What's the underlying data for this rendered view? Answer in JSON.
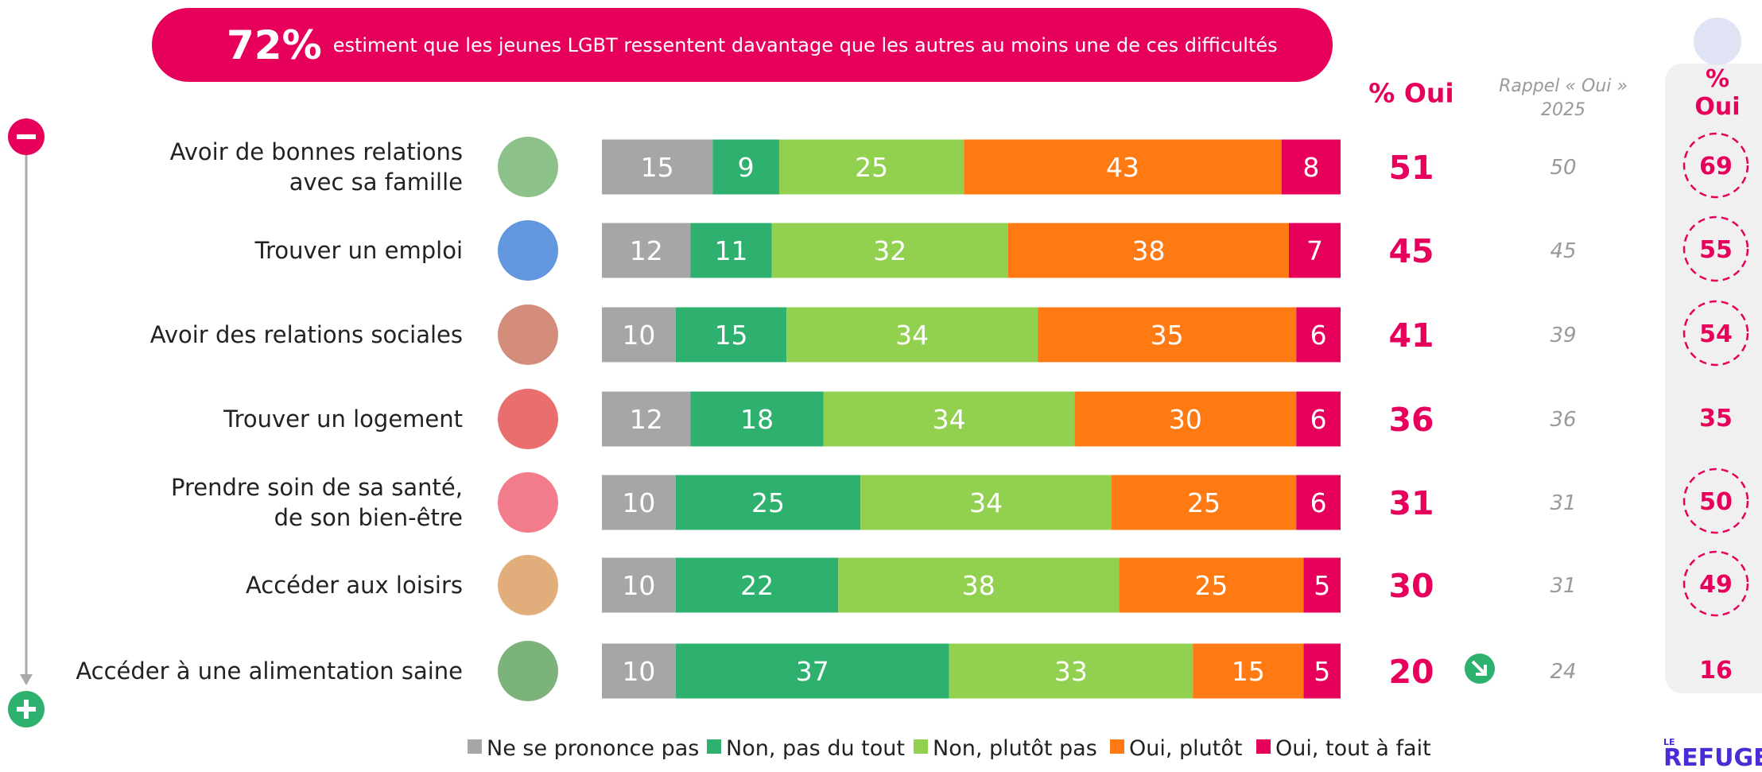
{
  "chart_data": {
    "type": "stacked-bar",
    "headline": {
      "figure": "72%",
      "text": "estiment que les jeunes LGBT ressentent davantage que les autres au moins une de ces difficultés"
    },
    "categories": [
      "Avoir de bonnes relations\navec sa famille",
      "Trouver un emploi",
      "Avoir des relations sociales",
      "Trouver un logement",
      "Prendre soin de sa santé,\nde son bien-être",
      "Accéder aux loisirs",
      "Accéder à une alimentation saine"
    ],
    "xlim": [
      0,
      100
    ],
    "series": [
      {
        "name": "Ne se prononce pas",
        "color": "#a6a6a6",
        "values": [
          15,
          12,
          10,
          12,
          10,
          10,
          10
        ]
      },
      {
        "name": "Non, pas du tout",
        "color": "#2eb06f",
        "values": [
          9,
          11,
          15,
          18,
          25,
          22,
          37
        ]
      },
      {
        "name": "Non, plutôt pas",
        "color": "#92d050",
        "values": [
          25,
          32,
          34,
          34,
          34,
          38,
          33
        ]
      },
      {
        "name": "Oui, plutôt",
        "color": "#ff7a12",
        "values": [
          43,
          38,
          35,
          30,
          25,
          25,
          15
        ]
      },
      {
        "name": "Oui, tout à fait",
        "color": "#e6005c",
        "values": [
          8,
          7,
          6,
          6,
          6,
          5,
          5
        ]
      }
    ],
    "oui_total": {
      "label": "% Oui",
      "values": [
        51,
        45,
        41,
        36,
        31,
        30,
        20
      ]
    },
    "rappel": {
      "label": "Rappel « Oui »\n2025",
      "values": [
        50,
        45,
        39,
        36,
        31,
        31,
        24
      ]
    },
    "comparison": {
      "label": "% Oui",
      "values": [
        69,
        55,
        54,
        35,
        50,
        49,
        16
      ],
      "circled": [
        true,
        true,
        true,
        false,
        true,
        true,
        false
      ]
    },
    "logo": {
      "small": "LE",
      "main": "REFUGE"
    }
  }
}
